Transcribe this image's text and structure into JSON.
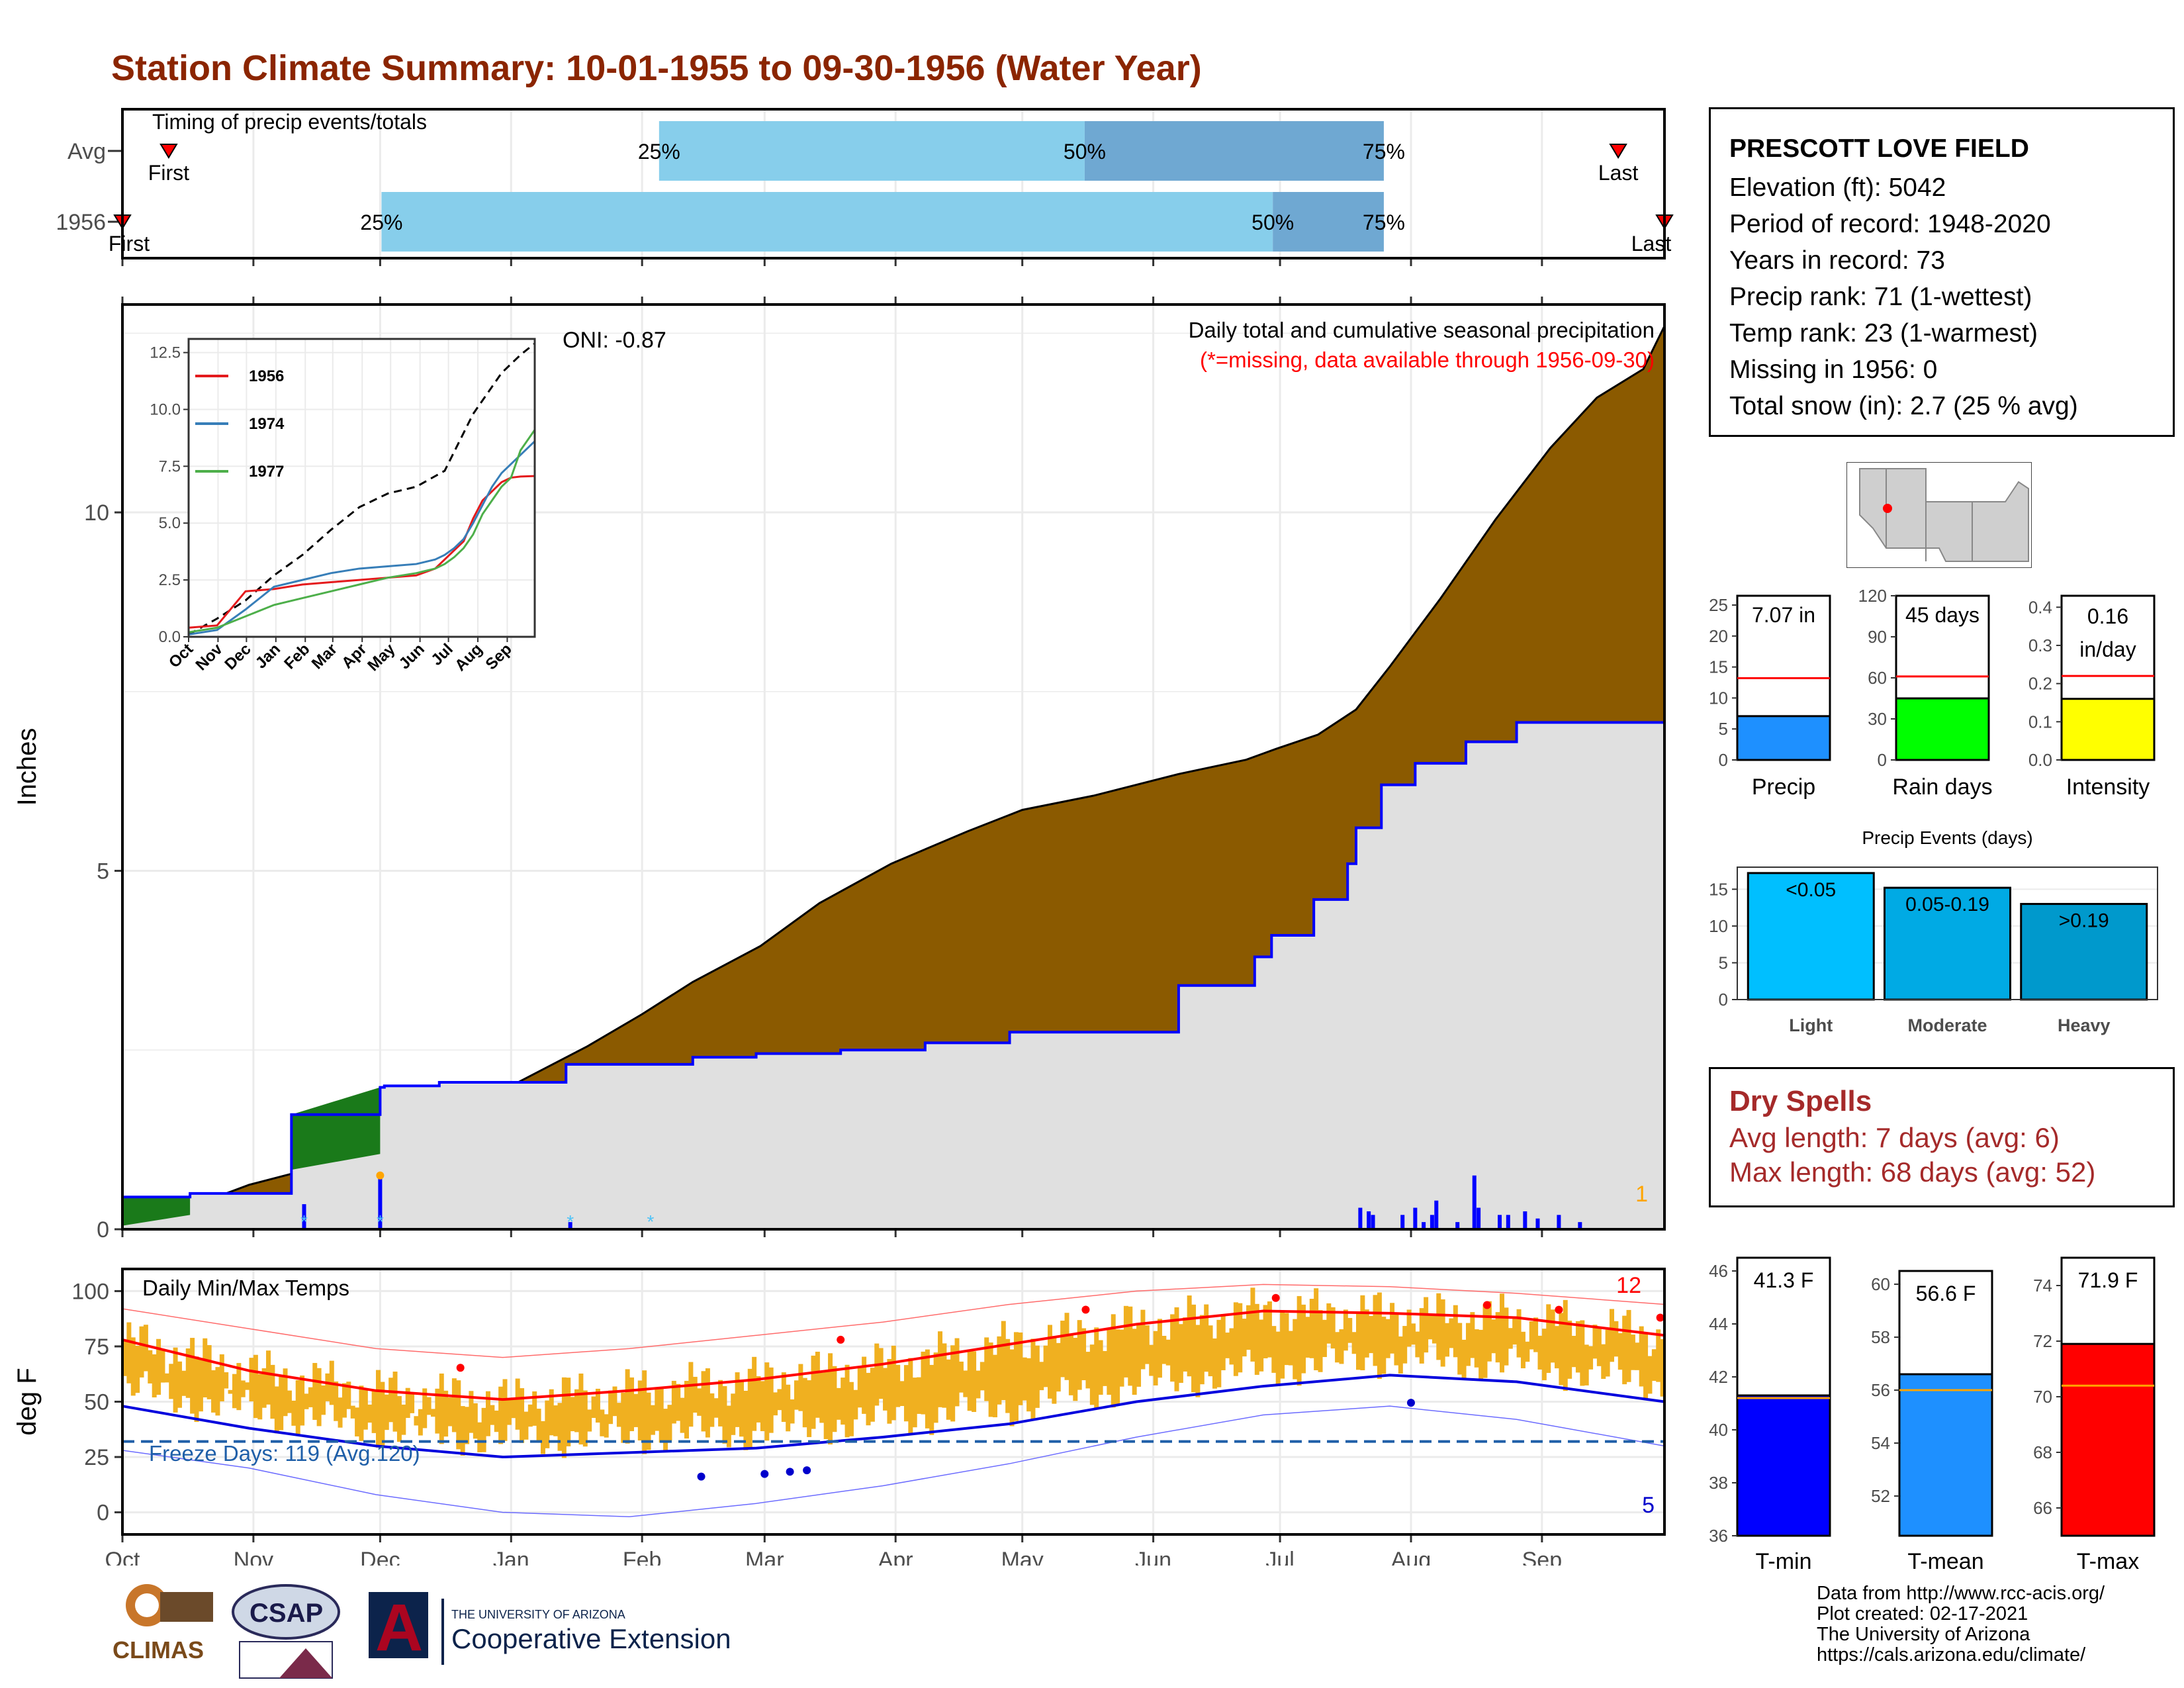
{
  "title": "Station Climate Summary: 10-01-1955 to 09-30-1956 (Water Year)",
  "timing": {
    "label": "Timing of precip events/totals",
    "rows": [
      {
        "name": "Avg",
        "first_label": "First",
        "last_label": "Last",
        "first": 0.03,
        "last": 0.97,
        "p25": 0.348,
        "p50": 0.624,
        "p75": 0.818
      },
      {
        "name": "1956",
        "first_label": "First",
        "last_label": "Last",
        "first": 0.0,
        "last": 1.0,
        "p25": 0.168,
        "p50": 0.746,
        "p75": 0.818
      }
    ],
    "p25_label": "25%",
    "p50_label": "50%",
    "p75_label": "75%"
  },
  "months": [
    "Oct",
    "Nov",
    "Dec",
    "Jan",
    "Feb",
    "Mar",
    "Apr",
    "May",
    "Jun",
    "Jul",
    "Aug",
    "Sep"
  ],
  "precip_panel": {
    "ylabel": "Inches",
    "yticks": [
      0,
      5,
      10
    ],
    "ymax": 12.9,
    "note_title": "Daily total and cumulative seasonal precipitation",
    "note_missing": "(*=missing, data available through 1956-09-30)",
    "oni": "ONI: -0.87",
    "count_label": "1",
    "avg_cumulative": {
      "days": [
        0,
        10,
        20,
        30,
        45,
        61,
        75,
        92,
        110,
        123,
        135,
        151,
        165,
        182,
        200,
        213,
        230,
        250,
        266,
        273,
        283,
        292,
        300,
        312,
        325,
        338,
        349,
        360,
        365
      ],
      "values": [
        0.05,
        0.2,
        0.4,
        0.62,
        0.85,
        1.05,
        1.45,
        2.0,
        2.55,
        3.0,
        3.45,
        3.95,
        4.55,
        5.1,
        5.55,
        5.85,
        6.05,
        6.35,
        6.55,
        6.7,
        6.9,
        7.25,
        7.85,
        8.8,
        9.9,
        10.9,
        11.6,
        12.0,
        12.6
      ]
    },
    "year_cumulative": {
      "days": [
        0,
        16,
        16,
        40,
        40,
        61,
        61,
        62,
        62,
        75,
        75,
        105,
        105,
        135,
        135,
        150,
        150,
        170,
        170,
        190,
        190,
        210,
        210,
        250,
        250,
        268,
        268,
        272,
        272,
        282,
        282,
        290,
        290,
        292,
        292,
        298,
        298,
        306,
        306,
        318,
        318,
        330,
        330,
        365
      ],
      "values": [
        0.45,
        0.45,
        0.5,
        0.5,
        1.6,
        1.6,
        1.98,
        1.98,
        2.0,
        2.0,
        2.05,
        2.05,
        2.3,
        2.3,
        2.4,
        2.4,
        2.45,
        2.45,
        2.5,
        2.5,
        2.6,
        2.6,
        2.75,
        2.75,
        3.4,
        3.4,
        3.8,
        3.8,
        4.1,
        4.1,
        4.6,
        4.6,
        5.1,
        5.1,
        5.6,
        5.6,
        6.2,
        6.2,
        6.5,
        6.5,
        6.8,
        6.8,
        7.07,
        7.07
      ]
    },
    "daily_bars": {
      "days": [
        43,
        61,
        106,
        293,
        295,
        296,
        303,
        306,
        308,
        310,
        311,
        316,
        320,
        321,
        326,
        328,
        332,
        335,
        340,
        345
      ],
      "values": [
        0.35,
        0.75,
        0.1,
        0.3,
        0.25,
        0.2,
        0.2,
        0.3,
        0.1,
        0.2,
        0.4,
        0.1,
        0.75,
        0.3,
        0.2,
        0.2,
        0.25,
        0.15,
        0.2,
        0.1
      ]
    }
  },
  "inset": {
    "yticks": [
      "0.0",
      "2.5",
      "5.0",
      "7.5",
      "10.0",
      "12.5"
    ],
    "months": [
      "Oct",
      "Nov",
      "Dec",
      "Jan",
      "Feb",
      "Mar",
      "Apr",
      "May",
      "Jun",
      "Jul",
      "Aug",
      "Sep"
    ],
    "series": [
      {
        "name": "1956",
        "color": "#e41a1c",
        "days": [
          0,
          30,
          60,
          90,
          120,
          150,
          180,
          210,
          240,
          260,
          270,
          280,
          290,
          300,
          310,
          320,
          330,
          340,
          350,
          365
        ],
        "values": [
          0.4,
          0.5,
          2.0,
          2.1,
          2.3,
          2.4,
          2.5,
          2.6,
          2.7,
          3.0,
          3.4,
          3.8,
          4.2,
          5.2,
          6.0,
          6.4,
          6.8,
          7.0,
          7.05,
          7.07
        ]
      },
      {
        "name": "1974",
        "color": "#377eb8",
        "days": [
          0,
          30,
          60,
          90,
          120,
          150,
          180,
          210,
          240,
          260,
          270,
          280,
          290,
          300,
          310,
          320,
          330,
          340,
          350,
          365
        ],
        "values": [
          0.1,
          0.3,
          1.2,
          2.2,
          2.5,
          2.8,
          3.0,
          3.1,
          3.2,
          3.4,
          3.6,
          3.9,
          4.3,
          5.0,
          5.8,
          6.6,
          7.2,
          7.6,
          8.0,
          8.6
        ]
      },
      {
        "name": "1977",
        "color": "#4daf4a",
        "days": [
          0,
          30,
          60,
          90,
          120,
          150,
          180,
          210,
          240,
          260,
          270,
          280,
          290,
          300,
          310,
          320,
          330,
          340,
          350,
          365
        ],
        "values": [
          0.2,
          0.4,
          0.9,
          1.4,
          1.7,
          2.0,
          2.3,
          2.6,
          2.8,
          3.0,
          3.2,
          3.5,
          3.9,
          4.5,
          5.4,
          6.0,
          6.6,
          7.0,
          8.2,
          9.1
        ]
      }
    ],
    "avg_line": {
      "days": [
        0,
        30,
        60,
        90,
        120,
        150,
        180,
        210,
        240,
        270,
        300,
        330,
        350,
        365
      ],
      "values": [
        0.1,
        0.8,
        1.6,
        2.7,
        3.6,
        4.7,
        5.7,
        6.3,
        6.6,
        7.3,
        9.8,
        11.6,
        12.4,
        12.9
      ]
    }
  },
  "temp_panel": {
    "ylabel": "deg F",
    "title": "Daily Min/Max Temps",
    "yticks": [
      0,
      25,
      50,
      75,
      100
    ],
    "freeze_label": "Freeze Days: 119 (Avg.120)",
    "hot_count": "12",
    "cold_count": "5",
    "freeze_line": 32,
    "avg_max": {
      "days": [
        0,
        30,
        60,
        90,
        120,
        150,
        180,
        210,
        240,
        270,
        300,
        330,
        365
      ],
      "values": [
        78,
        64,
        55,
        51,
        55,
        60,
        67,
        76,
        85,
        91,
        90,
        88,
        80
      ]
    },
    "avg_min": {
      "days": [
        0,
        30,
        60,
        90,
        120,
        150,
        180,
        210,
        240,
        270,
        300,
        330,
        365
      ],
      "values": [
        48,
        38,
        30,
        25,
        27,
        29,
        34,
        40,
        50,
        57,
        62,
        59,
        50
      ]
    },
    "record_max": {
      "days": [
        0,
        30,
        60,
        90,
        120,
        150,
        180,
        210,
        240,
        270,
        300,
        330,
        365
      ],
      "values": [
        92,
        83,
        74,
        70,
        74,
        80,
        86,
        94,
        100,
        103,
        102,
        99,
        94
      ]
    },
    "record_min": {
      "days": [
        0,
        30,
        60,
        90,
        120,
        150,
        180,
        210,
        240,
        270,
        300,
        330,
        365
      ],
      "values": [
        28,
        20,
        8,
        0,
        -2,
        4,
        12,
        22,
        34,
        44,
        48,
        42,
        30
      ]
    }
  },
  "mini_bars": [
    {
      "xlabel": "Precip",
      "value_label": "7.07 in",
      "value": 7.07,
      "avg": 13.2,
      "max": 26.5,
      "yticks": [
        0,
        5,
        10,
        15,
        20,
        25
      ],
      "color": "#1e90ff"
    },
    {
      "xlabel": "Rain days",
      "value_label": "45 days",
      "value": 45,
      "avg": 61,
      "max": 120,
      "yticks": [
        0,
        30,
        60,
        90,
        120
      ],
      "color": "#00ff00"
    },
    {
      "xlabel": "Intensity",
      "value_label": "0.16 in/day",
      "value": 0.16,
      "avg": 0.22,
      "max": 0.43,
      "yticks": [
        "0.0",
        "0.1",
        "0.2",
        "0.3",
        "0.4"
      ],
      "color": "#ffff00"
    }
  ],
  "events": {
    "title": "Precip Events (days)",
    "yticks": [
      0,
      5,
      10,
      15
    ],
    "bars": [
      {
        "category": "Light",
        "label": "<0.05",
        "value": 17.2,
        "color": "#00bfff"
      },
      {
        "category": "Moderate",
        "label": "0.05-0.19",
        "value": 15.2,
        "color": "#00aae4"
      },
      {
        "category": "Heavy",
        "label": ">0.19",
        "value": 13.0,
        "color": "#0099cc"
      }
    ]
  },
  "temp_bars": [
    {
      "xlabel": "T-min",
      "value_label": "41.3 F",
      "value": 41.3,
      "avg": 41.2,
      "min": 36,
      "max": 46.5,
      "yticks": [
        36,
        38,
        40,
        42,
        44,
        46
      ],
      "color": "#0000ff"
    },
    {
      "xlabel": "T-mean",
      "value_label": "56.6 F",
      "value": 56.6,
      "avg": 56.0,
      "min": 50.5,
      "max": 60.5,
      "yticks": [
        52,
        54,
        56,
        58,
        60
      ],
      "color": "#1e90ff"
    },
    {
      "xlabel": "T-max",
      "value_label": "71.9 F",
      "value": 71.9,
      "avg": 70.4,
      "min": 65,
      "max": 75,
      "yticks": [
        66,
        68,
        70,
        72,
        74
      ],
      "color": "#ff0000"
    }
  ],
  "station": {
    "name": "PRESCOTT LOVE FIELD",
    "elevation": "Elevation (ft): 5042",
    "period": "Period of record: 1948-2020",
    "years": "Years in record: 73",
    "precip_rank": "Precip rank: 71 (1-wettest)",
    "temp_rank": "Temp rank: 23 (1-warmest)",
    "missing": "Missing in 1956: 0",
    "snow": "Total snow (in): 2.7 (25 % avg)"
  },
  "dry_spells": {
    "title": "Dry Spells",
    "avg": "Avg length: 7 days (avg: 6)",
    "max": "Max length: 68 days (avg: 52)"
  },
  "footer": {
    "line1": "Data from http://www.rcc-acis.org/",
    "line2": "Plot created: 02-17-2021",
    "line3": "The University of Arizona",
    "line4": "https://cals.arizona.edu/climate/"
  },
  "logos": {
    "climas": "CLIMAS",
    "csap": "CSAP",
    "ua_small": "THE UNIVERSITY OF ARIZONA",
    "ua_big": "Cooperative Extension",
    "ua_letter": "A"
  },
  "colors": {
    "title": "#8b2500",
    "cum_fill": "#8b5a00",
    "bg_fill": "#e0e0e0",
    "year_line": "#0000ff",
    "temp_fill": "#f0b020",
    "dry": "#a52a2a"
  }
}
